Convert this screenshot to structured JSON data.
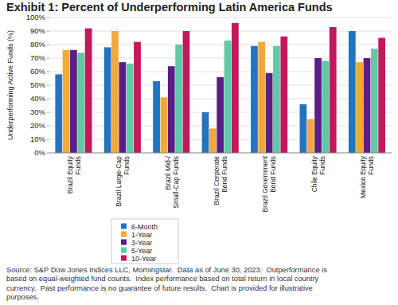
{
  "chart_data": {
    "type": "bar",
    "title": "Exhibit 1: Percent of Underperforming Latin America Funds",
    "y_label": "Underperforming Active Funds (%)",
    "categories": [
      "Brazil Equity Funds",
      "Brazil Large-Cap Funds",
      "Brazil Mid-/Small-Cap Funds",
      "Brazil Corporate Bond Funds",
      "Brazil Government Bond Funds",
      "Chile Equity Funds",
      "Mexico Equity Funds"
    ],
    "series": [
      {
        "name": "6-Month",
        "color": "#2473be",
        "values": [
          58,
          78,
          53,
          30,
          79,
          36,
          90
        ]
      },
      {
        "name": "1-Year",
        "color": "#f5a83a",
        "values": [
          76,
          90,
          41,
          18,
          82,
          25,
          67
        ]
      },
      {
        "name": "3-Year",
        "color": "#5a1f86",
        "values": [
          76,
          67,
          64,
          56,
          59,
          70,
          70
        ]
      },
      {
        "name": "5-Year",
        "color": "#5ecaa6",
        "values": [
          74,
          66,
          80,
          83,
          79,
          68,
          77
        ]
      },
      {
        "name": "10-Year",
        "color": "#c4175c",
        "values": [
          92,
          82,
          90,
          96,
          86,
          93,
          85
        ]
      }
    ],
    "ylim": [
      0,
      100
    ],
    "yticks": [
      {
        "value": 0,
        "label": "0%"
      },
      {
        "value": 10,
        "label": "10%"
      },
      {
        "value": 20,
        "label": "20%"
      },
      {
        "value": 30,
        "label": "30%"
      },
      {
        "value": 40,
        "label": "40%"
      },
      {
        "value": 50,
        "label": "50%"
      },
      {
        "value": 60,
        "label": "60%"
      },
      {
        "value": 70,
        "label": "70%"
      },
      {
        "value": 80,
        "label": "80%"
      },
      {
        "value": 90,
        "label": "90%"
      },
      {
        "value": 100,
        "label": "100%"
      }
    ],
    "grid": true,
    "legend": "bottom",
    "source": [
      "Source: S&P Dow Jones Indices LLC, Morningstar.  Data as of June 30, 2023.  Outperformance is",
      "based on equal-weighted fund counts.  Index performance based on total return in local country",
      "currency.  Past performance is no guarantee of future results.  Chart is provided for illustrative",
      "purposes."
    ]
  }
}
